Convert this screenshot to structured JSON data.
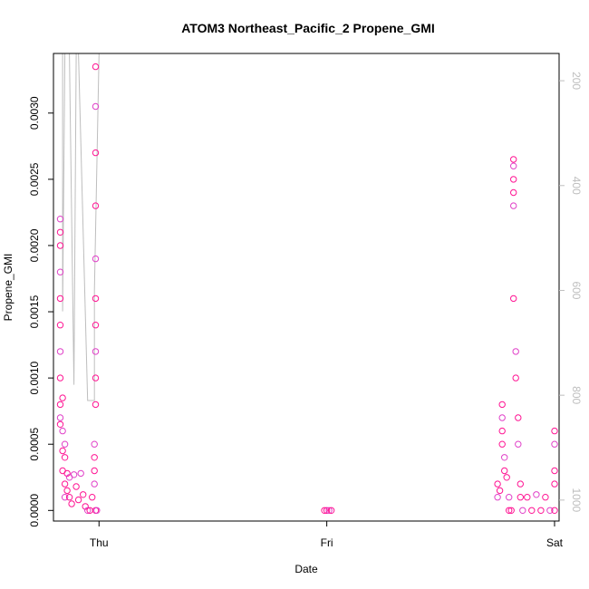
{
  "chart_data": {
    "type": "scatter",
    "title": "ATOM3 Northeast_Pacific_2 Propene_GMI",
    "xlabel": "Date",
    "ylabel": "Propene_GMI",
    "x_categories": [
      "Thu",
      "Fri",
      "Sat"
    ],
    "xlim_days": [
      -0.2,
      2.02
    ],
    "ylim": [
      -8e-05,
      0.00345
    ],
    "yticks": [
      0.0,
      0.0005,
      0.001,
      0.0015,
      0.002,
      0.0025,
      0.003
    ],
    "ytick_labels": [
      "0.0000",
      "0.0005",
      "0.0010",
      "0.0015",
      "0.0020",
      "0.0025",
      "0.0030"
    ],
    "y2ticks": [
      200,
      400,
      600,
      800,
      1000
    ],
    "y2_reversed": true,
    "y2lim": [
      148,
      1040
    ],
    "grid": false,
    "colors": {
      "points_a": "#ff1493",
      "points_b": "#e040c8",
      "trace": "#bebebe"
    },
    "series_points": [
      [
        -0.17,
        0.0022
      ],
      [
        -0.17,
        0.0021
      ],
      [
        -0.17,
        0.002
      ],
      [
        -0.17,
        0.0018
      ],
      [
        -0.17,
        0.0016
      ],
      [
        -0.17,
        0.0014
      ],
      [
        -0.17,
        0.0012
      ],
      [
        -0.17,
        0.001
      ],
      [
        -0.17,
        0.0008
      ],
      [
        -0.17,
        0.0007
      ],
      [
        -0.17,
        0.00065
      ],
      [
        -0.16,
        0.00085
      ],
      [
        -0.16,
        0.0006
      ],
      [
        -0.16,
        0.00045
      ],
      [
        -0.16,
        0.0003
      ],
      [
        -0.15,
        0.0005
      ],
      [
        -0.15,
        0.0004
      ],
      [
        -0.15,
        0.0002
      ],
      [
        -0.15,
        0.0001
      ],
      [
        -0.14,
        0.00028
      ],
      [
        -0.14,
        0.00015
      ],
      [
        -0.13,
        0.00025
      ],
      [
        -0.13,
        0.0001
      ],
      [
        -0.12,
        5e-05
      ],
      [
        -0.11,
        0.00027
      ],
      [
        -0.1,
        0.00018
      ],
      [
        -0.09,
        8e-05
      ],
      [
        -0.08,
        0.00028
      ],
      [
        -0.07,
        0.00012
      ],
      [
        -0.06,
        3e-05
      ],
      [
        -0.05,
        0.0
      ],
      [
        -0.04,
        0.0
      ],
      [
        -0.03,
        0.0001
      ],
      [
        -0.02,
        0.0005
      ],
      [
        -0.02,
        0.0004
      ],
      [
        -0.02,
        0.0003
      ],
      [
        -0.02,
        0.0002
      ],
      [
        -0.015,
        0.0008
      ],
      [
        -0.015,
        0.001
      ],
      [
        -0.015,
        0.0012
      ],
      [
        -0.015,
        0.0014
      ],
      [
        -0.015,
        0.0016
      ],
      [
        -0.015,
        0.0019
      ],
      [
        -0.015,
        0.0023
      ],
      [
        -0.015,
        0.0027
      ],
      [
        -0.015,
        0.00305
      ],
      [
        -0.015,
        0.00335
      ],
      [
        -0.015,
        0.0
      ],
      [
        -0.01,
        0.0
      ],
      [
        0.99,
        0.0
      ],
      [
        1.0,
        0.0
      ],
      [
        1.01,
        0.0
      ],
      [
        1.02,
        0.0
      ],
      [
        1.75,
        0.0002
      ],
      [
        1.75,
        0.0001
      ],
      [
        1.76,
        0.00015
      ],
      [
        1.77,
        0.0008
      ],
      [
        1.77,
        0.0007
      ],
      [
        1.77,
        0.0006
      ],
      [
        1.77,
        0.0005
      ],
      [
        1.78,
        0.0004
      ],
      [
        1.78,
        0.0003
      ],
      [
        1.79,
        0.00025
      ],
      [
        1.8,
        0.0001
      ],
      [
        1.8,
        0.0
      ],
      [
        1.81,
        0.0
      ],
      [
        1.82,
        0.0026
      ],
      [
        1.82,
        0.0025
      ],
      [
        1.82,
        0.0024
      ],
      [
        1.82,
        0.0023
      ],
      [
        1.82,
        0.00265
      ],
      [
        1.82,
        0.0016
      ],
      [
        1.83,
        0.0012
      ],
      [
        1.83,
        0.001
      ],
      [
        1.84,
        0.0007
      ],
      [
        1.84,
        0.0005
      ],
      [
        1.85,
        0.0002
      ],
      [
        1.85,
        0.0001
      ],
      [
        1.86,
        0.0
      ],
      [
        1.88,
        0.0001
      ],
      [
        1.9,
        0.0
      ],
      [
        1.92,
        0.00012
      ],
      [
        1.94,
        0.0
      ],
      [
        1.96,
        0.0001
      ],
      [
        1.98,
        0.0
      ],
      [
        2.0,
        0.0
      ],
      [
        2.0,
        0.0006
      ],
      [
        2.0,
        0.0005
      ],
      [
        2.0,
        0.0003
      ],
      [
        2.0,
        0.0002
      ]
    ],
    "trace_points": [
      [
        -0.2,
        148
      ],
      [
        -0.16,
        148
      ],
      [
        -0.16,
        640
      ],
      [
        -0.15,
        148
      ],
      [
        -0.13,
        148
      ],
      [
        -0.11,
        780
      ],
      [
        -0.1,
        148
      ],
      [
        -0.09,
        148
      ],
      [
        -0.05,
        810
      ],
      [
        -0.02,
        810
      ],
      [
        -0.02,
        600
      ],
      [
        0.0,
        148
      ],
      [
        0.2,
        148
      ],
      [
        0.45,
        148
      ],
      [
        0.7,
        148
      ],
      [
        1.0,
        148
      ],
      [
        1.2,
        148
      ],
      [
        1.4,
        148
      ],
      [
        1.7,
        148
      ],
      [
        1.8,
        148
      ],
      [
        1.8,
        100
      ],
      [
        1.85,
        148
      ],
      [
        1.86,
        148
      ],
      [
        1.9,
        148
      ],
      [
        1.92,
        148
      ],
      [
        1.97,
        148
      ],
      [
        2.0,
        148
      ],
      [
        2.02,
        148
      ]
    ]
  }
}
